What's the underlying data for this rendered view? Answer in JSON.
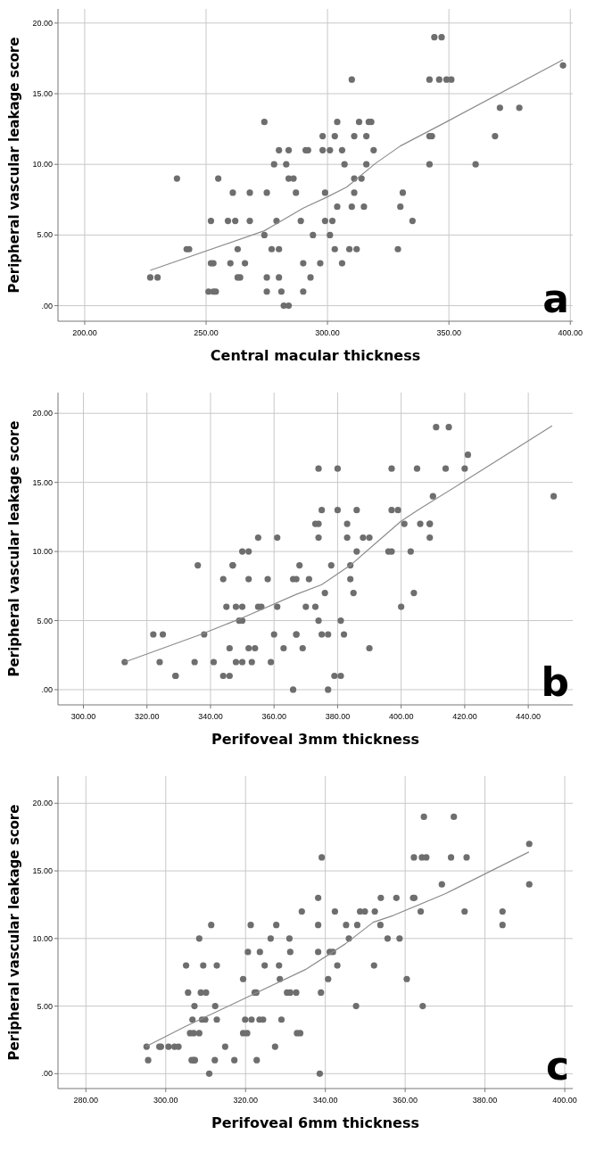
{
  "chart_data": [
    {
      "type": "scatter",
      "xlabel": "Central macular thickness",
      "ylabel": "Peripheral vascular leakage score",
      "annotations": [
        "a"
      ],
      "grid": true,
      "xlim": [
        189,
        401
      ],
      "ylim": [
        -1.1,
        21
      ],
      "xticks": [
        {
          "value": 200,
          "label": "200.00"
        },
        {
          "value": 250,
          "label": "250.00"
        },
        {
          "value": 300,
          "label": "300.00"
        },
        {
          "value": 350,
          "label": "350.00"
        },
        {
          "value": 400,
          "label": "400.00"
        }
      ],
      "yticks": [
        {
          "value": 0,
          "label": ".00"
        },
        {
          "value": 5,
          "label": "5.00"
        },
        {
          "value": 10,
          "label": "10.00"
        },
        {
          "value": 15,
          "label": "15.00"
        },
        {
          "value": 20,
          "label": "20.00"
        }
      ],
      "series": [
        {
          "marker": "circle",
          "color": "#6e6e6e",
          "x": [
            344,
            347,
            397,
            310,
            342,
            346,
            349,
            351,
            371,
            379,
            274,
            304,
            313,
            317,
            318,
            298,
            303,
            311,
            316,
            342,
            343,
            369,
            280,
            284,
            291,
            292,
            298,
            301,
            306,
            319,
            278,
            283,
            307,
            316,
            342,
            361,
            238,
            255,
            284,
            286,
            311,
            314,
            261,
            268,
            275,
            287,
            299,
            311,
            331,
            304,
            310,
            315,
            330,
            252,
            259,
            262,
            268,
            279,
            289,
            299,
            302,
            335,
            274,
            294,
            301,
            242,
            243,
            263,
            277,
            280,
            303,
            309,
            312,
            329,
            252,
            253,
            260,
            266,
            290,
            297,
            306,
            227,
            230,
            263,
            264,
            275,
            280,
            293,
            251,
            253,
            254,
            275,
            281,
            290,
            282,
            284
          ],
          "values": [
            19,
            19,
            17,
            16,
            16,
            16,
            16,
            16,
            14,
            14,
            13,
            13,
            13,
            13,
            13,
            12,
            12,
            12,
            12,
            12,
            12,
            12,
            11,
            11,
            11,
            11,
            11,
            11,
            11,
            11,
            10,
            10,
            10,
            10,
            10,
            10,
            9,
            9,
            9,
            9,
            9,
            9,
            8,
            8,
            8,
            8,
            8,
            8,
            8,
            7,
            7,
            7,
            7,
            6,
            6,
            6,
            6,
            6,
            6,
            6,
            6,
            6,
            5,
            5,
            5,
            4,
            4,
            4,
            4,
            4,
            4,
            4,
            4,
            4,
            3,
            3,
            3,
            3,
            3,
            3,
            3,
            2,
            2,
            2,
            2,
            2,
            2,
            2,
            1,
            1,
            1,
            1,
            1,
            1,
            0,
            0
          ]
        },
        {
          "type": "line",
          "marker": "none",
          "color": "#8c8c8c",
          "x": [
            227,
            274,
            290,
            300,
            308,
            320,
            330,
            350,
            397
          ],
          "values": [
            2.5,
            5.3,
            6.9,
            7.7,
            8.4,
            10.1,
            11.3,
            13.1,
            17.4
          ]
        }
      ]
    },
    {
      "type": "scatter",
      "xlabel": "Perifoveal 3mm thickness",
      "ylabel": "Peripheral vascular leakage score",
      "annotations": [
        "b"
      ],
      "grid": true,
      "xlim": [
        292,
        454
      ],
      "ylim": [
        -1.1,
        21.5
      ],
      "xticks": [
        {
          "value": 300,
          "label": "300.00"
        },
        {
          "value": 320,
          "label": "320.00"
        },
        {
          "value": 340,
          "label": "340.00"
        },
        {
          "value": 360,
          "label": "360.00"
        },
        {
          "value": 380,
          "label": "380.00"
        },
        {
          "value": 400,
          "label": "400.00"
        },
        {
          "value": 420,
          "label": "420.00"
        },
        {
          "value": 440,
          "label": "440.00"
        }
      ],
      "yticks": [
        {
          "value": 0,
          "label": ".00"
        },
        {
          "value": 5,
          "label": "5.00"
        },
        {
          "value": 10,
          "label": "10.00"
        },
        {
          "value": 15,
          "label": "15.00"
        },
        {
          "value": 20,
          "label": "20.00"
        }
      ],
      "series": [
        {
          "marker": "circle",
          "color": "#6e6e6e",
          "x": [
            411,
            415,
            421,
            374,
            380,
            397,
            405,
            414,
            420,
            410,
            448,
            375,
            380,
            386,
            397,
            399,
            373,
            374,
            383,
            401,
            406,
            409,
            409,
            355,
            361,
            374,
            383,
            388,
            390,
            409,
            350,
            352,
            386,
            396,
            397,
            403,
            336,
            347,
            347,
            368,
            378,
            384,
            344,
            352,
            358,
            366,
            367,
            371,
            384,
            376,
            385,
            404,
            345,
            348,
            350,
            355,
            356,
            361,
            370,
            373,
            400,
            349,
            350,
            374,
            381,
            322,
            325,
            338,
            360,
            367,
            367,
            375,
            377,
            382,
            346,
            352,
            354,
            363,
            369,
            390,
            313,
            324,
            335,
            341,
            348,
            350,
            353,
            359,
            329,
            329,
            344,
            346,
            379,
            381,
            366,
            377
          ],
          "values": [
            19,
            19,
            17,
            16,
            16,
            16,
            16,
            16,
            16,
            14,
            14,
            13,
            13,
            13,
            13,
            13,
            12,
            12,
            12,
            12,
            12,
            12,
            12,
            11,
            11,
            11,
            11,
            11,
            11,
            11,
            10,
            10,
            10,
            10,
            10,
            10,
            9,
            9,
            9,
            9,
            9,
            9,
            8,
            8,
            8,
            8,
            8,
            8,
            8,
            7,
            7,
            7,
            6,
            6,
            6,
            6,
            6,
            6,
            6,
            6,
            6,
            5,
            5,
            5,
            5,
            4,
            4,
            4,
            4,
            4,
            4,
            4,
            4,
            4,
            3,
            3,
            3,
            3,
            3,
            3,
            2,
            2,
            2,
            2,
            2,
            2,
            2,
            2,
            1,
            1,
            1,
            1,
            1,
            1,
            0,
            0
          ]
        },
        {
          "type": "line",
          "marker": "none",
          "color": "#8c8c8c",
          "x": [
            313,
            337,
            350,
            367,
            375,
            384,
            392,
            400,
            406,
            420,
            447.5
          ],
          "values": [
            2.0,
            4.0,
            5.2,
            6.9,
            7.6,
            9.0,
            10.6,
            12.2,
            13.1,
            15.1,
            19.1
          ]
        }
      ]
    },
    {
      "type": "scatter",
      "xlabel": "Perifoveal 6mm thickness",
      "ylabel": "Peripheral vascular leakage score",
      "annotations": [
        "c"
      ],
      "grid": true,
      "xlim": [
        273,
        402
      ],
      "ylim": [
        -1.1,
        22
      ],
      "xticks": [
        {
          "value": 280,
          "label": "280.00"
        },
        {
          "value": 300,
          "label": "300.00"
        },
        {
          "value": 320,
          "label": "320.00"
        },
        {
          "value": 340,
          "label": "340.00"
        },
        {
          "value": 360,
          "label": "360.00"
        },
        {
          "value": 380,
          "label": "380.00"
        },
        {
          "value": 400,
          "label": "400.00"
        }
      ],
      "yticks": [
        {
          "value": 0,
          "label": ".00"
        },
        {
          "value": 5,
          "label": "5.00"
        },
        {
          "value": 10,
          "label": "10.00"
        },
        {
          "value": 15,
          "label": "15.00"
        },
        {
          "value": 20,
          "label": "20.00"
        }
      ],
      "series": [
        {
          "marker": "circle",
          "color": "#6e6e6e",
          "x": [
            364.7,
            372.2,
            391.1,
            339.1,
            362.2,
            364.2,
            365.3,
            371.5,
            375.4,
            369.2,
            391.1,
            338.2,
            353.9,
            357.8,
            362,
            362.3,
            334.1,
            342.4,
            348.7,
            349.9,
            352.4,
            363.9,
            374.9,
            384.4,
            311.4,
            321.3,
            327.7,
            338.2,
            345.2,
            348,
            353.8,
            384.4,
            308.4,
            326.3,
            331,
            345.9,
            355.6,
            358.6,
            320.6,
            323.6,
            331.2,
            338.2,
            341.1,
            341.9,
            305.1,
            309.4,
            312.8,
            324.8,
            328.4,
            343,
            352.2,
            319.4,
            328.6,
            340.7,
            360.4,
            305.6,
            308.8,
            310.1,
            322.3,
            322.7,
            330.4,
            331.2,
            332.7,
            338.9,
            307.2,
            312.4,
            347.7,
            364.4,
            306.7,
            309.1,
            309.9,
            312.8,
            319.9,
            321.5,
            323.5,
            324.4,
            329,
            306.1,
            307,
            308.4,
            319.4,
            320.4,
            332.9,
            333.7,
            295.2,
            298.4,
            298.8,
            300.7,
            302.2,
            303.2,
            314.9,
            327.4,
            295.6,
            306.5,
            307,
            307.3,
            312.3,
            317.2,
            322.8,
            310.9,
            338.6
          ],
          "values": [
            19,
            19,
            17,
            16,
            16,
            16,
            16,
            16,
            16,
            14,
            14,
            13,
            13,
            13,
            13,
            13,
            12,
            12,
            12,
            12,
            12,
            12,
            12,
            12,
            11,
            11,
            11,
            11,
            11,
            11,
            11,
            11,
            10,
            10,
            10,
            10,
            10,
            10,
            9,
            9,
            9,
            9,
            9,
            9,
            8,
            8,
            8,
            8,
            8,
            8,
            8,
            7,
            7,
            7,
            7,
            6,
            6,
            6,
            6,
            6,
            6,
            6,
            6,
            6,
            5,
            5,
            5,
            5,
            4,
            4,
            4,
            4,
            4,
            4,
            4,
            4,
            4,
            3,
            3,
            3,
            3,
            3,
            3,
            3,
            2,
            2,
            2,
            2,
            2,
            2,
            2,
            2,
            1,
            1,
            1,
            1,
            1,
            1,
            1,
            0,
            0
          ]
        },
        {
          "type": "line",
          "marker": "none",
          "color": "#8c8c8c",
          "x": [
            295,
            305,
            320,
            335,
            345,
            352,
            357,
            370,
            391
          ],
          "values": [
            2.0,
            3.5,
            5.6,
            7.7,
            9.6,
            11.2,
            11.7,
            13.3,
            16.4
          ]
        }
      ]
    }
  ]
}
